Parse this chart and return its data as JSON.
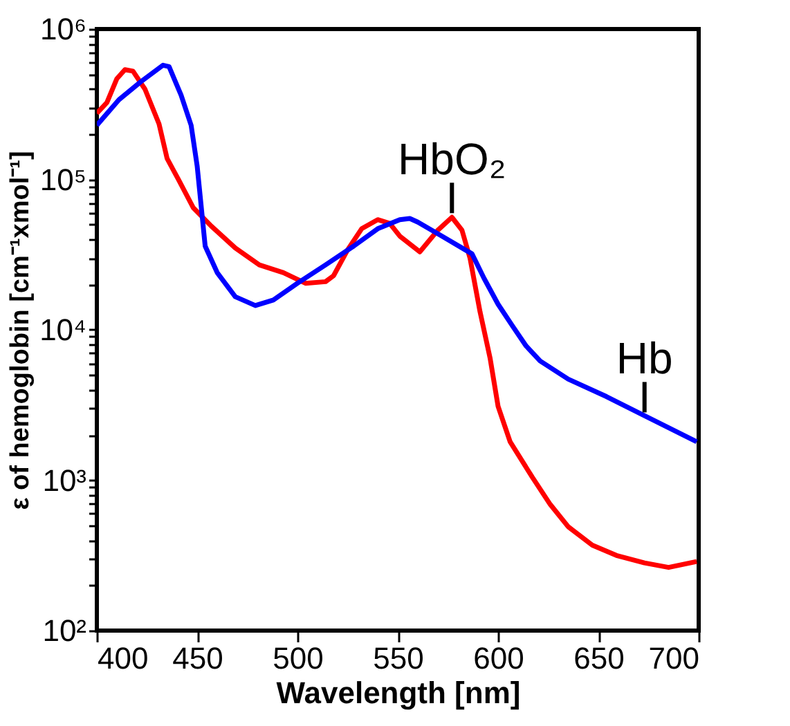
{
  "chart_data": {
    "type": "line",
    "xlabel": "Wavelength [nm]",
    "ylabel": "ε of hemoglobin [cm⁻¹xmol⁻¹]",
    "log": "y",
    "grid": false,
    "marker": "none",
    "line_style": "solid",
    "xlim": [
      400,
      700
    ],
    "xticks": [
      400,
      450,
      500,
      550,
      600,
      650,
      700
    ],
    "ylim": [
      100,
      1000000
    ],
    "yticks": [
      {
        "value": 100,
        "label": "10²"
      },
      {
        "value": 200,
        "label": null
      },
      {
        "value": 300,
        "label": null
      },
      {
        "value": 400,
        "label": null
      },
      {
        "value": 500,
        "label": null
      },
      {
        "value": 600,
        "label": null
      },
      {
        "value": 700,
        "label": null
      },
      {
        "value": 800,
        "label": null
      },
      {
        "value": 900,
        "label": null
      },
      {
        "value": 1000,
        "label": "10³"
      },
      {
        "value": 2000,
        "label": null
      },
      {
        "value": 3000,
        "label": null
      },
      {
        "value": 4000,
        "label": null
      },
      {
        "value": 5000,
        "label": null
      },
      {
        "value": 6000,
        "label": null
      },
      {
        "value": 7000,
        "label": null
      },
      {
        "value": 8000,
        "label": null
      },
      {
        "value": 9000,
        "label": null
      },
      {
        "value": 10000,
        "label": "10⁴"
      },
      {
        "value": 20000,
        "label": null
      },
      {
        "value": 30000,
        "label": null
      },
      {
        "value": 40000,
        "label": null
      },
      {
        "value": 50000,
        "label": null
      },
      {
        "value": 60000,
        "label": null
      },
      {
        "value": 70000,
        "label": null
      },
      {
        "value": 80000,
        "label": null
      },
      {
        "value": 90000,
        "label": null
      },
      {
        "value": 100000,
        "label": "10⁵"
      },
      {
        "value": 200000,
        "label": null
      },
      {
        "value": 300000,
        "label": null
      },
      {
        "value": 400000,
        "label": null
      },
      {
        "value": 500000,
        "label": null
      },
      {
        "value": 600000,
        "label": null
      },
      {
        "value": 700000,
        "label": null
      },
      {
        "value": 800000,
        "label": null
      },
      {
        "value": 900000,
        "label": null
      },
      {
        "value": 1000000,
        "label": "10⁶"
      }
    ],
    "series": [
      {
        "color": "#ff0000",
        "x": [
          400,
          405,
          410,
          414,
          418,
          424,
          431,
          435,
          441,
          448,
          457,
          469,
          481,
          493,
          504,
          514,
          518,
          525,
          532,
          540,
          546,
          551,
          561,
          570,
          577,
          582,
          586,
          591,
          596,
          600,
          606,
          617,
          626,
          635,
          647,
          659,
          673,
          685,
          699
        ],
        "values": [
          275000,
          324000,
          468000,
          537000,
          525000,
          398000,
          234000,
          138000,
          98000,
          65000,
          49000,
          35000,
          27000,
          24000,
          20400,
          20900,
          22900,
          34000,
          47000,
          54000,
          51000,
          42000,
          33000,
          46000,
          56000,
          46000,
          30000,
          13200,
          6500,
          3100,
          1800,
          1050,
          690,
          490,
          370,
          316,
          282,
          263,
          288
        ]
      },
      {
        "color": "#0000ff",
        "x": [
          400,
          411,
          422,
          433,
          436,
          442,
          447,
          450,
          454,
          460,
          469,
          479,
          488,
          500,
          514,
          528,
          540,
          551,
          556,
          560,
          572,
          587,
          593,
          600,
          607,
          614,
          621,
          635,
          654,
          675,
          699
        ],
        "values": [
          229000,
          339000,
          447000,
          575000,
          562000,
          363000,
          229000,
          123000,
          36000,
          24000,
          16600,
          14500,
          15800,
          20400,
          27000,
          36000,
          47000,
          54000,
          55000,
          52000,
          42000,
          32000,
          22000,
          14800,
          10700,
          7800,
          6200,
          4700,
          3600,
          2600,
          1800
        ]
      }
    ],
    "annotations": [
      {
        "text": "HbO₂",
        "x": 577,
        "y": 56000
      },
      {
        "text": "Hb",
        "x": 673,
        "y": 2650
      }
    ]
  }
}
